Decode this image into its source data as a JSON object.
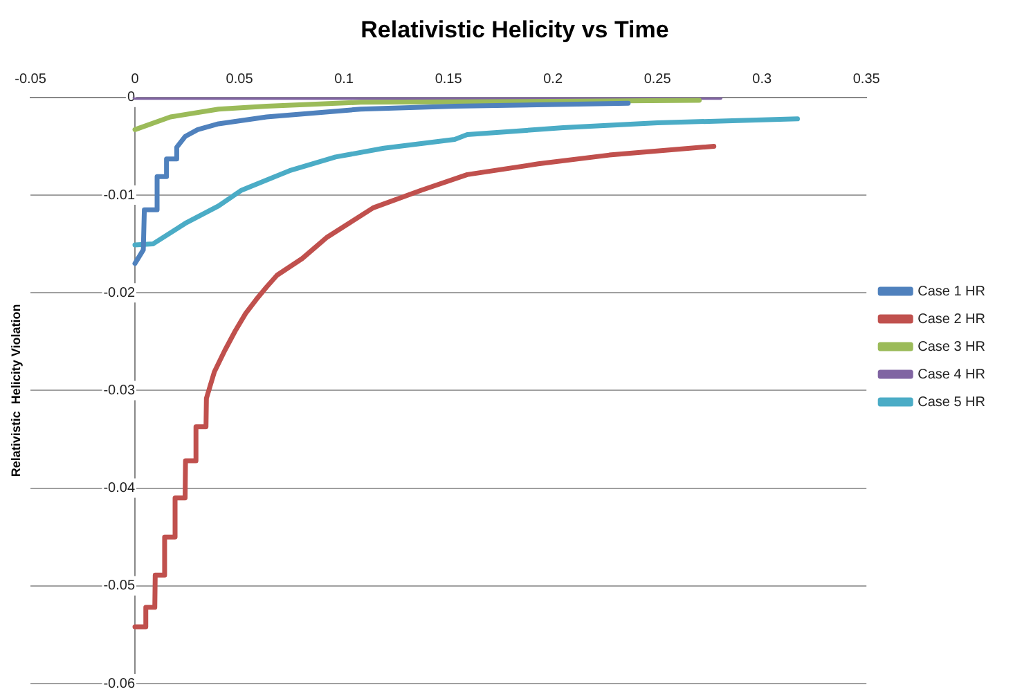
{
  "chart_data": {
    "type": "line",
    "title": "Relativistic Helicity vs Time",
    "ylabel": "Relativistic  Helicity Violation",
    "xlim": [
      -0.05,
      0.35
    ],
    "xticks": [
      -0.05,
      0,
      0.05,
      0.1,
      0.15,
      0.2,
      0.25,
      0.3,
      0.35
    ],
    "ylim": [
      -0.06,
      0
    ],
    "yticks": [
      -0.06,
      -0.05,
      -0.04,
      -0.03,
      -0.02,
      -0.01,
      0
    ],
    "grid": "y",
    "legend": "right",
    "marker": "none",
    "line_style": "solid",
    "series": [
      {
        "name": "Case 1 HR",
        "color": "#4f81bd",
        "x": [
          0,
          0.004,
          0.0045,
          0.0104,
          0.0106,
          0.0149,
          0.0151,
          0.0198,
          0.02,
          0.024,
          0.03,
          0.04,
          0.063,
          0.108,
          0.153,
          0.236
        ],
        "values": [
          -0.017,
          -0.0156,
          -0.0115,
          -0.0115,
          -0.0081,
          -0.0081,
          -0.0063,
          -0.0063,
          -0.0051,
          -0.004,
          -0.0033,
          -0.0027,
          -0.002,
          -0.0012,
          -0.0009,
          -0.0006
        ]
      },
      {
        "name": "Case 2 HR",
        "color": "#c0504d",
        "x": [
          0,
          0.005,
          0.0052,
          0.0095,
          0.0097,
          0.014,
          0.0142,
          0.019,
          0.0192,
          0.024,
          0.0242,
          0.029,
          0.0292,
          0.034,
          0.0342,
          0.038,
          0.043,
          0.048,
          0.053,
          0.058,
          0.063,
          0.068,
          0.08,
          0.092,
          0.114,
          0.137,
          0.159,
          0.193,
          0.227,
          0.277
        ],
        "values": [
          -0.0542,
          -0.0542,
          -0.0522,
          -0.0522,
          -0.0489,
          -0.0489,
          -0.045,
          -0.045,
          -0.041,
          -0.041,
          -0.0372,
          -0.0372,
          -0.0337,
          -0.0337,
          -0.0308,
          -0.0281,
          -0.0259,
          -0.0239,
          -0.0221,
          -0.0207,
          -0.0194,
          -0.0182,
          -0.0165,
          -0.0143,
          -0.0113,
          -0.0095,
          -0.0079,
          -0.0068,
          -0.0059,
          -0.005
        ]
      },
      {
        "name": "Case 3 HR",
        "color": "#9bbb59",
        "x": [
          0,
          0.017,
          0.04,
          0.063,
          0.108,
          0.2,
          0.27
        ],
        "values": [
          -0.0033,
          -0.002,
          -0.0012,
          -0.0009,
          -0.0005,
          -0.0004,
          -0.0003
        ]
      },
      {
        "name": "Case 4 HR",
        "color": "#8064a2",
        "x": [
          0,
          0.1,
          0.2,
          0.28
        ],
        "values": [
          0,
          0,
          0,
          0
        ]
      },
      {
        "name": "Case 5 HR",
        "color": "#4bacc6",
        "x": [
          0,
          0.0086,
          0.024,
          0.04,
          0.051,
          0.074,
          0.096,
          0.119,
          0.153,
          0.159,
          0.205,
          0.25,
          0.317
        ],
        "values": [
          -0.0151,
          -0.015,
          -0.0129,
          -0.0111,
          -0.0095,
          -0.0075,
          -0.0061,
          -0.0052,
          -0.0043,
          -0.0038,
          -0.0031,
          -0.0026,
          -0.0022
        ]
      }
    ]
  }
}
